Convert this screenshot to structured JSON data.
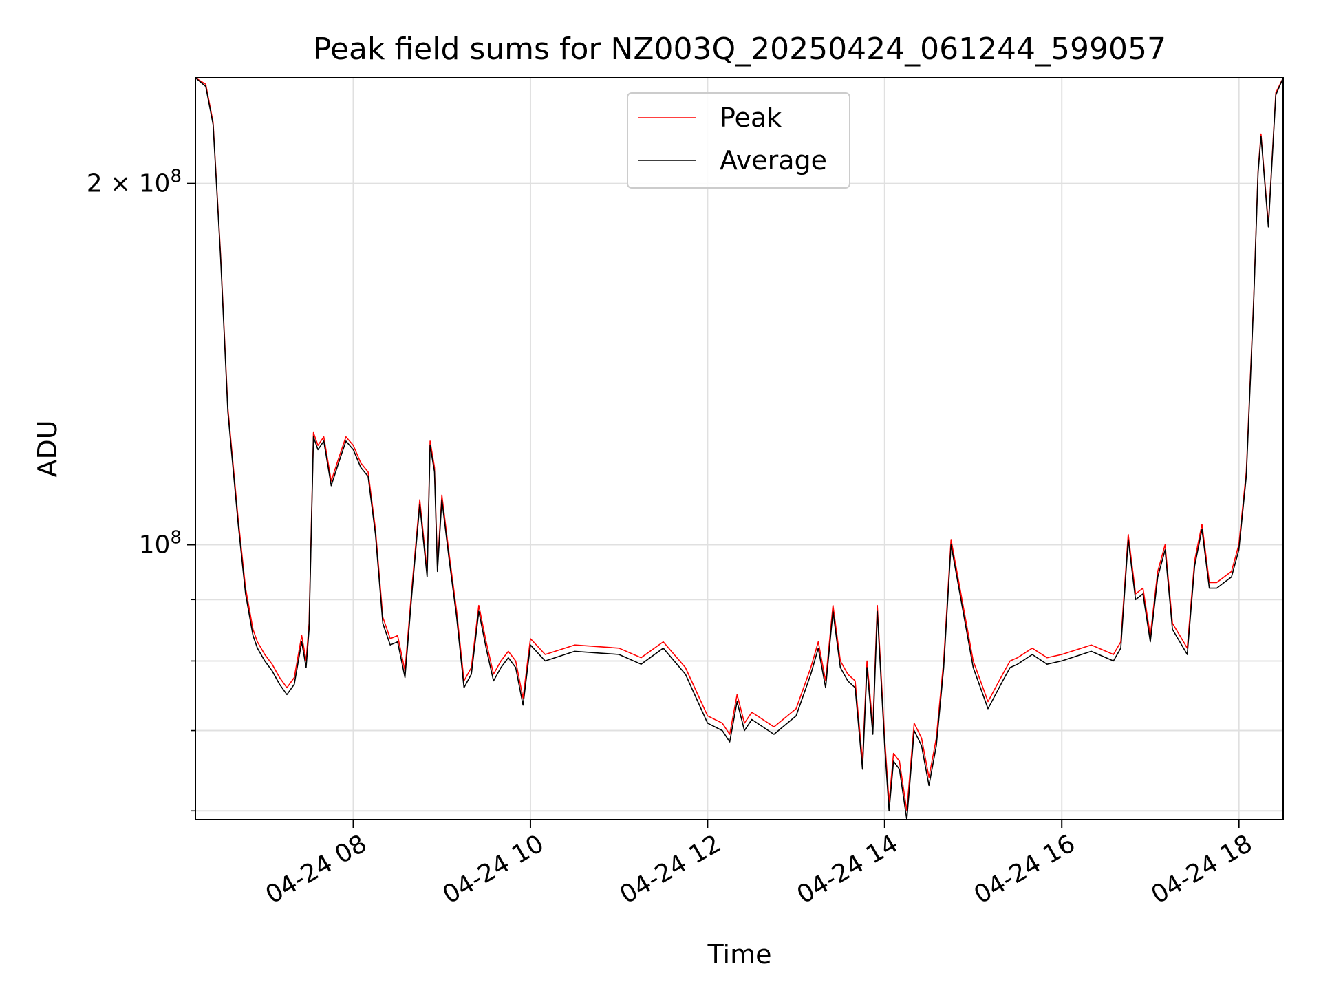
{
  "chart_data": {
    "type": "line",
    "title": "Peak field sums for NZ003Q_20250424_061244_599057",
    "xlabel": "Time",
    "ylabel": "ADU",
    "y_scale": "log",
    "grid": true,
    "legend_position": "upper center",
    "xlim": [
      "2025-04-24 06:13",
      "2025-04-24 18:30"
    ],
    "ylim": [
      59000000,
      245000000
    ],
    "x_tick_labels": [
      "04-24 08",
      "04-24 10",
      "04-24 12",
      "04-24 14",
      "04-24 16",
      "04-24 18"
    ],
    "x_ticks": [
      "2025-04-24 08:00",
      "2025-04-24 10:00",
      "2025-04-24 12:00",
      "2025-04-24 14:00",
      "2025-04-24 16:00",
      "2025-04-24 18:00"
    ],
    "y_major_ticks": [
      100000000,
      200000000
    ],
    "y_tick_labels": [
      {
        "base": "10",
        "exp": "8"
      },
      {
        "base": "2 × 10",
        "exp": "8"
      }
    ],
    "y_minor_ticks": [
      60000000,
      70000000,
      80000000,
      90000000
    ],
    "series": [
      {
        "name": "Peak",
        "color": "#ff0000",
        "x": [
          "2025-04-24 06:13",
          "2025-04-24 06:20",
          "2025-04-24 06:25",
          "2025-04-24 06:30",
          "2025-04-24 06:35",
          "2025-04-24 06:42",
          "2025-04-24 06:47",
          "2025-04-24 06:52",
          "2025-04-24 06:55",
          "2025-04-24 07:00",
          "2025-04-24 07:05",
          "2025-04-24 07:10",
          "2025-04-24 07:15",
          "2025-04-24 07:20",
          "2025-04-24 07:25",
          "2025-04-24 07:28",
          "2025-04-24 07:30",
          "2025-04-24 07:33",
          "2025-04-24 07:36",
          "2025-04-24 07:40",
          "2025-04-24 07:45",
          "2025-04-24 07:50",
          "2025-04-24 07:55",
          "2025-04-24 08:00",
          "2025-04-24 08:05",
          "2025-04-24 08:10",
          "2025-04-24 08:15",
          "2025-04-24 08:20",
          "2025-04-24 08:25",
          "2025-04-24 08:30",
          "2025-04-24 08:35",
          "2025-04-24 08:40",
          "2025-04-24 08:45",
          "2025-04-24 08:50",
          "2025-04-24 08:52",
          "2025-04-24 08:55",
          "2025-04-24 08:57",
          "2025-04-24 09:00",
          "2025-04-24 09:05",
          "2025-04-24 09:10",
          "2025-04-24 09:15",
          "2025-04-24 09:20",
          "2025-04-24 09:25",
          "2025-04-24 09:30",
          "2025-04-24 09:35",
          "2025-04-24 09:40",
          "2025-04-24 09:45",
          "2025-04-24 09:50",
          "2025-04-24 09:55",
          "2025-04-24 10:00",
          "2025-04-24 10:10",
          "2025-04-24 10:30",
          "2025-04-24 11:00",
          "2025-04-24 11:15",
          "2025-04-24 11:30",
          "2025-04-24 11:45",
          "2025-04-24 12:00",
          "2025-04-24 12:10",
          "2025-04-24 12:15",
          "2025-04-24 12:20",
          "2025-04-24 12:25",
          "2025-04-24 12:30",
          "2025-04-24 12:45",
          "2025-04-24 13:00",
          "2025-04-24 13:10",
          "2025-04-24 13:15",
          "2025-04-24 13:20",
          "2025-04-24 13:25",
          "2025-04-24 13:30",
          "2025-04-24 13:35",
          "2025-04-24 13:40",
          "2025-04-24 13:45",
          "2025-04-24 13:48",
          "2025-04-24 13:52",
          "2025-04-24 13:55",
          "2025-04-24 14:00",
          "2025-04-24 14:03",
          "2025-04-24 14:06",
          "2025-04-24 14:10",
          "2025-04-24 14:15",
          "2025-04-24 14:20",
          "2025-04-24 14:25",
          "2025-04-24 14:30",
          "2025-04-24 14:35",
          "2025-04-24 14:40",
          "2025-04-24 14:45",
          "2025-04-24 15:00",
          "2025-04-24 15:10",
          "2025-04-24 15:20",
          "2025-04-24 15:25",
          "2025-04-24 15:30",
          "2025-04-24 15:40",
          "2025-04-24 15:50",
          "2025-04-24 16:00",
          "2025-04-24 16:20",
          "2025-04-24 16:35",
          "2025-04-24 16:40",
          "2025-04-24 16:45",
          "2025-04-24 16:50",
          "2025-04-24 16:55",
          "2025-04-24 17:00",
          "2025-04-24 17:05",
          "2025-04-24 17:10",
          "2025-04-24 17:15",
          "2025-04-24 17:20",
          "2025-04-24 17:25",
          "2025-04-24 17:30",
          "2025-04-24 17:35",
          "2025-04-24 17:40",
          "2025-04-24 17:45",
          "2025-04-24 17:50",
          "2025-04-24 17:55",
          "2025-04-24 18:00",
          "2025-04-24 18:05",
          "2025-04-24 18:10",
          "2025-04-24 18:13",
          "2025-04-24 18:15",
          "2025-04-24 18:20",
          "2025-04-24 18:25",
          "2025-04-24 18:30"
        ],
        "y": [
          245000000,
          242000000,
          225000000,
          175000000,
          130000000,
          105000000,
          92000000,
          85000000,
          83000000,
          81000000,
          79500000,
          77500000,
          76000000,
          77500000,
          84000000,
          80000000,
          86000000,
          124000000,
          121000000,
          123000000,
          113000000,
          118000000,
          123000000,
          121000000,
          117000000,
          115000000,
          103000000,
          87000000,
          83500000,
          84000000,
          78500000,
          93000000,
          109000000,
          95000000,
          122000000,
          116000000,
          96000000,
          110000000,
          98000000,
          88000000,
          77000000,
          79000000,
          89000000,
          83000000,
          78000000,
          80000000,
          81500000,
          80000000,
          74500000,
          83500000,
          81000000,
          82500000,
          82000000,
          80500000,
          83000000,
          79000000,
          72000000,
          71000000,
          69500000,
          75000000,
          71000000,
          72500000,
          70500000,
          73000000,
          79000000,
          83000000,
          77000000,
          89000000,
          80000000,
          78000000,
          77000000,
          66000000,
          80000000,
          70500000,
          89000000,
          69000000,
          61000000,
          67000000,
          66000000,
          60000000,
          71000000,
          69000000,
          64000000,
          69000000,
          80000000,
          101000000,
          80000000,
          74000000,
          78000000,
          80000000,
          80500000,
          82000000,
          80500000,
          81000000,
          82500000,
          81000000,
          83000000,
          102000000,
          91000000,
          92000000,
          84000000,
          95000000,
          100000000,
          86000000,
          84000000,
          82000000,
          97000000,
          104000000,
          93000000,
          93000000,
          94000000,
          95000000,
          100000000,
          115000000,
          160000000,
          205000000,
          220000000,
          185000000,
          238000000,
          245000000
        ]
      },
      {
        "name": "Average",
        "color": "#000000",
        "x": [
          "2025-04-24 06:13",
          "2025-04-24 06:20",
          "2025-04-24 06:25",
          "2025-04-24 06:30",
          "2025-04-24 06:35",
          "2025-04-24 06:42",
          "2025-04-24 06:47",
          "2025-04-24 06:52",
          "2025-04-24 06:55",
          "2025-04-24 07:00",
          "2025-04-24 07:05",
          "2025-04-24 07:10",
          "2025-04-24 07:15",
          "2025-04-24 07:20",
          "2025-04-24 07:25",
          "2025-04-24 07:28",
          "2025-04-24 07:30",
          "2025-04-24 07:33",
          "2025-04-24 07:36",
          "2025-04-24 07:40",
          "2025-04-24 07:45",
          "2025-04-24 07:50",
          "2025-04-24 07:55",
          "2025-04-24 08:00",
          "2025-04-24 08:05",
          "2025-04-24 08:10",
          "2025-04-24 08:15",
          "2025-04-24 08:20",
          "2025-04-24 08:25",
          "2025-04-24 08:30",
          "2025-04-24 08:35",
          "2025-04-24 08:40",
          "2025-04-24 08:45",
          "2025-04-24 08:50",
          "2025-04-24 08:52",
          "2025-04-24 08:55",
          "2025-04-24 08:57",
          "2025-04-24 09:00",
          "2025-04-24 09:05",
          "2025-04-24 09:10",
          "2025-04-24 09:15",
          "2025-04-24 09:20",
          "2025-04-24 09:25",
          "2025-04-24 09:30",
          "2025-04-24 09:35",
          "2025-04-24 09:40",
          "2025-04-24 09:45",
          "2025-04-24 09:50",
          "2025-04-24 09:55",
          "2025-04-24 10:00",
          "2025-04-24 10:10",
          "2025-04-24 10:30",
          "2025-04-24 11:00",
          "2025-04-24 11:15",
          "2025-04-24 11:30",
          "2025-04-24 11:45",
          "2025-04-24 12:00",
          "2025-04-24 12:10",
          "2025-04-24 12:15",
          "2025-04-24 12:20",
          "2025-04-24 12:25",
          "2025-04-24 12:30",
          "2025-04-24 12:45",
          "2025-04-24 13:00",
          "2025-04-24 13:10",
          "2025-04-24 13:15",
          "2025-04-24 13:20",
          "2025-04-24 13:25",
          "2025-04-24 13:30",
          "2025-04-24 13:35",
          "2025-04-24 13:40",
          "2025-04-24 13:45",
          "2025-04-24 13:48",
          "2025-04-24 13:52",
          "2025-04-24 13:55",
          "2025-04-24 14:00",
          "2025-04-24 14:03",
          "2025-04-24 14:06",
          "2025-04-24 14:10",
          "2025-04-24 14:15",
          "2025-04-24 14:20",
          "2025-04-24 14:25",
          "2025-04-24 14:30",
          "2025-04-24 14:35",
          "2025-04-24 14:40",
          "2025-04-24 14:45",
          "2025-04-24 15:00",
          "2025-04-24 15:10",
          "2025-04-24 15:20",
          "2025-04-24 15:25",
          "2025-04-24 15:30",
          "2025-04-24 15:40",
          "2025-04-24 15:50",
          "2025-04-24 16:00",
          "2025-04-24 16:20",
          "2025-04-24 16:35",
          "2025-04-24 16:40",
          "2025-04-24 16:45",
          "2025-04-24 16:50",
          "2025-04-24 16:55",
          "2025-04-24 17:00",
          "2025-04-24 17:05",
          "2025-04-24 17:10",
          "2025-04-24 17:15",
          "2025-04-24 17:20",
          "2025-04-24 17:25",
          "2025-04-24 17:30",
          "2025-04-24 17:35",
          "2025-04-24 17:40",
          "2025-04-24 17:45",
          "2025-04-24 17:50",
          "2025-04-24 17:55",
          "2025-04-24 18:00",
          "2025-04-24 18:05",
          "2025-04-24 18:10",
          "2025-04-24 18:13",
          "2025-04-24 18:15",
          "2025-04-24 18:20",
          "2025-04-24 18:25",
          "2025-04-24 18:30"
        ],
        "y": [
          245000000,
          241000000,
          224000000,
          174000000,
          129000000,
          104000000,
          91000000,
          84000000,
          82000000,
          80000000,
          78500000,
          76500000,
          75000000,
          76500000,
          83000000,
          79000000,
          85000000,
          123000000,
          120000000,
          122000000,
          112000000,
          117000000,
          122000000,
          120000000,
          116000000,
          114000000,
          102000000,
          86000000,
          82500000,
          83000000,
          77500000,
          92000000,
          108000000,
          94000000,
          121000000,
          115000000,
          95000000,
          109000000,
          97000000,
          87000000,
          76000000,
          78000000,
          88000000,
          82000000,
          77000000,
          79000000,
          80500000,
          79000000,
          73500000,
          82500000,
          80000000,
          81500000,
          81000000,
          79500000,
          82000000,
          78000000,
          71000000,
          70000000,
          68500000,
          74000000,
          70000000,
          71500000,
          69500000,
          72000000,
          78000000,
          82000000,
          76000000,
          88000000,
          79000000,
          77000000,
          76000000,
          65000000,
          79000000,
          69500000,
          88000000,
          68000000,
          60000000,
          66000000,
          65000000,
          59000000,
          70000000,
          68000000,
          63000000,
          68000000,
          79000000,
          100000000,
          79000000,
          73000000,
          77000000,
          79000000,
          79500000,
          81000000,
          79500000,
          80000000,
          81500000,
          80000000,
          82000000,
          101000000,
          90000000,
          91000000,
          83000000,
          94000000,
          99000000,
          85000000,
          83000000,
          81000000,
          96000000,
          103000000,
          92000000,
          92000000,
          93000000,
          94000000,
          99000000,
          114000000,
          159000000,
          204000000,
          219000000,
          184000000,
          237000000,
          245000000
        ]
      }
    ]
  }
}
